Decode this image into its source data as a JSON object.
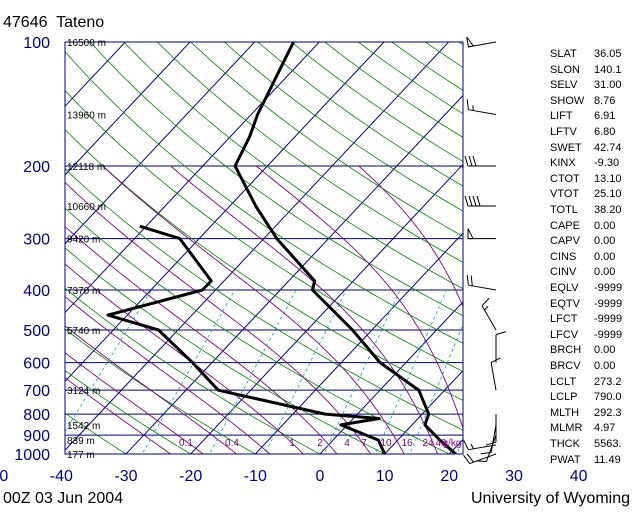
{
  "station": {
    "id": "47646",
    "name": "Tateno"
  },
  "footer": {
    "time": "00Z 03 Jun 2004",
    "source": "University of Wyoming"
  },
  "chart_data": {
    "type": "line",
    "subtype": "skew-T log-P sounding diagram",
    "y_axis": {
      "label": "",
      "unit": "hPa",
      "scale": "log",
      "range": [
        1000,
        100
      ],
      "ticks": [
        100,
        200,
        300,
        400,
        500,
        600,
        700,
        800,
        900,
        1000
      ]
    },
    "x_axis": {
      "label": "",
      "unit": "°C",
      "skewed": true,
      "range": [
        -80,
        40
      ],
      "ticks": [
        -80,
        -70,
        -60,
        -50,
        -40,
        -30,
        -20,
        -10,
        0,
        10,
        20,
        30,
        40
      ]
    },
    "height_labels": [
      {
        "p": 100,
        "text": "16500 m"
      },
      {
        "p": 150,
        "text": "13960 m"
      },
      {
        "p": 200,
        "text": "12118 m"
      },
      {
        "p": 250,
        "text": "10660 m"
      },
      {
        "p": 300,
        "text": "9420 m"
      },
      {
        "p": 400,
        "text": "7370 m"
      },
      {
        "p": 500,
        "text": "5740 m"
      },
      {
        "p": 700,
        "text": "3124 m"
      },
      {
        "p": 850,
        "text": "1542 m"
      },
      {
        "p": 925,
        "text": "839 m"
      },
      {
        "p": 1000,
        "text": "177 m"
      }
    ],
    "mixing_ratio_labels": [
      "0.1",
      "0.4",
      "1",
      "2",
      "4",
      "7",
      "10",
      "16",
      "24",
      "40",
      "g/kg"
    ],
    "series": [
      {
        "color": "#000000",
        "points": [
          [
            1000,
            21.0
          ],
          [
            925,
            16.5
          ],
          [
            850,
            12.0
          ],
          [
            800,
            11.0
          ],
          [
            700,
            6.0
          ],
          [
            600,
            -4.0
          ],
          [
            500,
            -13.0
          ],
          [
            400,
            -25.0
          ],
          [
            380,
            -26.0
          ],
          [
            300,
            -38.0
          ],
          [
            250,
            -46.0
          ],
          [
            200,
            -55.0
          ],
          [
            170,
            -57.0
          ],
          [
            150,
            -59.0
          ],
          [
            100,
            -64.0
          ]
        ]
      },
      {
        "color": "#000000",
        "points": [
          [
            1000,
            10.0
          ],
          [
            925,
            7.0
          ],
          [
            850,
            -1.0
          ],
          [
            820,
            4.0
          ],
          [
            800,
            -5.0
          ],
          [
            700,
            -25.0
          ],
          [
            600,
            -33.0
          ],
          [
            500,
            -43.0
          ],
          [
            460,
            -53.0
          ],
          [
            400,
            -42.0
          ],
          [
            380,
            -42.0
          ],
          [
            300,
            -53.0
          ],
          [
            280,
            -61.0
          ]
        ]
      }
    ],
    "wind_barbs": [
      {
        "p": 1000,
        "speed_kt": 20,
        "dir_deg": 250
      },
      {
        "p": 950,
        "speed_kt": 15,
        "dir_deg": 260
      },
      {
        "p": 900,
        "speed_kt": 10,
        "dir_deg": 200
      },
      {
        "p": 850,
        "speed_kt": 10,
        "dir_deg": 190
      },
      {
        "p": 800,
        "speed_kt": 10,
        "dir_deg": 180
      },
      {
        "p": 700,
        "speed_kt": 10,
        "dir_deg": 350
      },
      {
        "p": 600,
        "speed_kt": 10,
        "dir_deg": 0
      },
      {
        "p": 500,
        "speed_kt": 15,
        "dir_deg": 330
      },
      {
        "p": 400,
        "speed_kt": 20,
        "dir_deg": 280
      },
      {
        "p": 300,
        "speed_kt": 50,
        "dir_deg": 270
      },
      {
        "p": 250,
        "speed_kt": 40,
        "dir_deg": 270
      },
      {
        "p": 200,
        "speed_kt": 30,
        "dir_deg": 270
      },
      {
        "p": 150,
        "speed_kt": 15,
        "dir_deg": 280
      },
      {
        "p": 100,
        "speed_kt": 50,
        "dir_deg": 260
      }
    ]
  },
  "indices": [
    {
      "name": "SLAT",
      "value": "36.05"
    },
    {
      "name": "SLON",
      "value": "140.1"
    },
    {
      "name": "SELV",
      "value": "31.00"
    },
    {
      "name": "SHOW",
      "value": "8.76"
    },
    {
      "name": "LIFT",
      "value": "6.91"
    },
    {
      "name": "LFTV",
      "value": "6.80"
    },
    {
      "name": "SWET",
      "value": "42.74"
    },
    {
      "name": "KINX",
      "value": "-9.30"
    },
    {
      "name": "CTOT",
      "value": "13.10"
    },
    {
      "name": "VTOT",
      "value": "25.10"
    },
    {
      "name": "TOTL",
      "value": "38.20"
    },
    {
      "name": "CAPE",
      "value": "0.00"
    },
    {
      "name": "CAPV",
      "value": "0.00"
    },
    {
      "name": "CINS",
      "value": "0.00"
    },
    {
      "name": "CINV",
      "value": "0.00"
    },
    {
      "name": "EQLV",
      "value": "-9999"
    },
    {
      "name": "EQTV",
      "value": "-9999"
    },
    {
      "name": "LFCT",
      "value": "-9999"
    },
    {
      "name": "LFCV",
      "value": "-9999"
    },
    {
      "name": "BRCH",
      "value": "0.00"
    },
    {
      "name": "BRCV",
      "value": "0.00"
    },
    {
      "name": "LCLT",
      "value": "273.2"
    },
    {
      "name": "LCLP",
      "value": "790.0"
    },
    {
      "name": "MLTH",
      "value": "292.3"
    },
    {
      "name": "MLMR",
      "value": "4.97"
    },
    {
      "name": "THCK",
      "value": "5563."
    },
    {
      "name": "PWAT",
      "value": "11.49"
    }
  ],
  "colors": {
    "frame": "#000080",
    "isotherm": "#000080",
    "dry_adiabat": "#008000",
    "moist_adiabat": "#800080",
    "mixing_ratio": "#00a0c0",
    "profile": "#000000"
  }
}
